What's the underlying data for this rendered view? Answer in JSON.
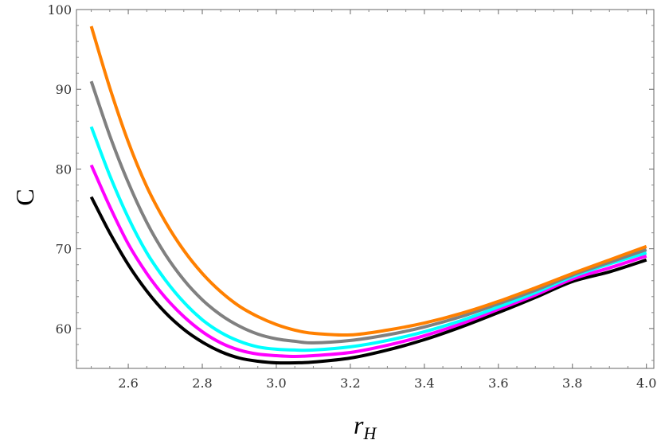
{
  "chart_data": {
    "type": "line",
    "title": "",
    "xlabel": "r",
    "xlabel_sub": "H",
    "ylabel": "C",
    "xlim": [
      2.46,
      4.02
    ],
    "ylim": [
      55,
      100
    ],
    "xticks": [
      2.6,
      2.8,
      3.0,
      3.2,
      3.4,
      3.6,
      3.8,
      4.0
    ],
    "xtick_labels": [
      "2.6",
      "2.8",
      "3.0",
      "3.2",
      "3.4",
      "3.6",
      "3.8",
      "4.0"
    ],
    "yticks": [
      60,
      70,
      80,
      90,
      100
    ],
    "ytick_labels": [
      "60",
      "70",
      "80",
      "90",
      "100"
    ],
    "grid": false,
    "series": [
      {
        "color": "#000000",
        "x": [
          2.5,
          2.55,
          2.6,
          2.65,
          2.7,
          2.75,
          2.8,
          2.85,
          2.9,
          2.95,
          3.0,
          3.05,
          3.1,
          3.2,
          3.3,
          3.4,
          3.5,
          3.6,
          3.7,
          3.8,
          3.9,
          4.0
        ],
        "y": [
          76.5,
          72.0,
          68.0,
          64.7,
          62.0,
          59.9,
          58.3,
          57.1,
          56.3,
          55.9,
          55.7,
          55.7,
          55.8,
          56.3,
          57.3,
          58.6,
          60.2,
          62.0,
          63.9,
          65.9,
          67.1,
          68.6
        ]
      },
      {
        "color": "#ff00ff",
        "x": [
          2.5,
          2.55,
          2.6,
          2.65,
          2.7,
          2.75,
          2.8,
          2.85,
          2.9,
          2.95,
          3.0,
          3.05,
          3.1,
          3.2,
          3.3,
          3.4,
          3.5,
          3.6,
          3.7,
          3.8,
          3.9,
          4.0
        ],
        "y": [
          80.5,
          75.3,
          70.6,
          66.9,
          63.9,
          61.5,
          59.6,
          58.2,
          57.3,
          56.8,
          56.6,
          56.5,
          56.6,
          57.0,
          57.9,
          59.1,
          60.6,
          62.4,
          64.2,
          66.2,
          67.6,
          69.1
        ]
      },
      {
        "color": "#00ffff",
        "x": [
          2.5,
          2.55,
          2.6,
          2.65,
          2.7,
          2.75,
          2.8,
          2.85,
          2.9,
          2.95,
          3.0,
          3.05,
          3.1,
          3.2,
          3.3,
          3.4,
          3.5,
          3.6,
          3.7,
          3.8,
          3.9,
          4.0
        ],
        "y": [
          85.3,
          79.2,
          73.9,
          69.5,
          66.1,
          63.3,
          61.1,
          59.5,
          58.4,
          57.7,
          57.4,
          57.3,
          57.3,
          57.7,
          58.5,
          59.6,
          61.0,
          62.7,
          64.5,
          66.5,
          68.1,
          69.5
        ]
      },
      {
        "color": "#808080",
        "x": [
          2.5,
          2.55,
          2.6,
          2.65,
          2.7,
          2.75,
          2.8,
          2.85,
          2.9,
          2.95,
          3.0,
          3.05,
          3.1,
          3.2,
          3.3,
          3.4,
          3.5,
          3.6,
          3.7,
          3.8,
          3.9,
          4.0
        ],
        "y": [
          91.0,
          84.2,
          78.3,
          73.3,
          69.3,
          66.1,
          63.6,
          61.7,
          60.3,
          59.3,
          58.7,
          58.4,
          58.2,
          58.5,
          59.2,
          60.2,
          61.5,
          63.1,
          64.8,
          66.7,
          68.3,
          69.9
        ]
      },
      {
        "color": "#ff8000",
        "x": [
          2.5,
          2.55,
          2.6,
          2.65,
          2.7,
          2.75,
          2.8,
          2.85,
          2.9,
          2.95,
          3.0,
          3.05,
          3.1,
          3.2,
          3.3,
          3.4,
          3.5,
          3.6,
          3.7,
          3.8,
          3.9,
          4.0
        ],
        "y": [
          97.9,
          90.2,
          83.4,
          77.8,
          73.4,
          69.8,
          66.9,
          64.6,
          62.8,
          61.5,
          60.5,
          59.8,
          59.4,
          59.2,
          59.8,
          60.7,
          61.9,
          63.4,
          65.1,
          66.9,
          68.6,
          70.3
        ]
      }
    ]
  }
}
